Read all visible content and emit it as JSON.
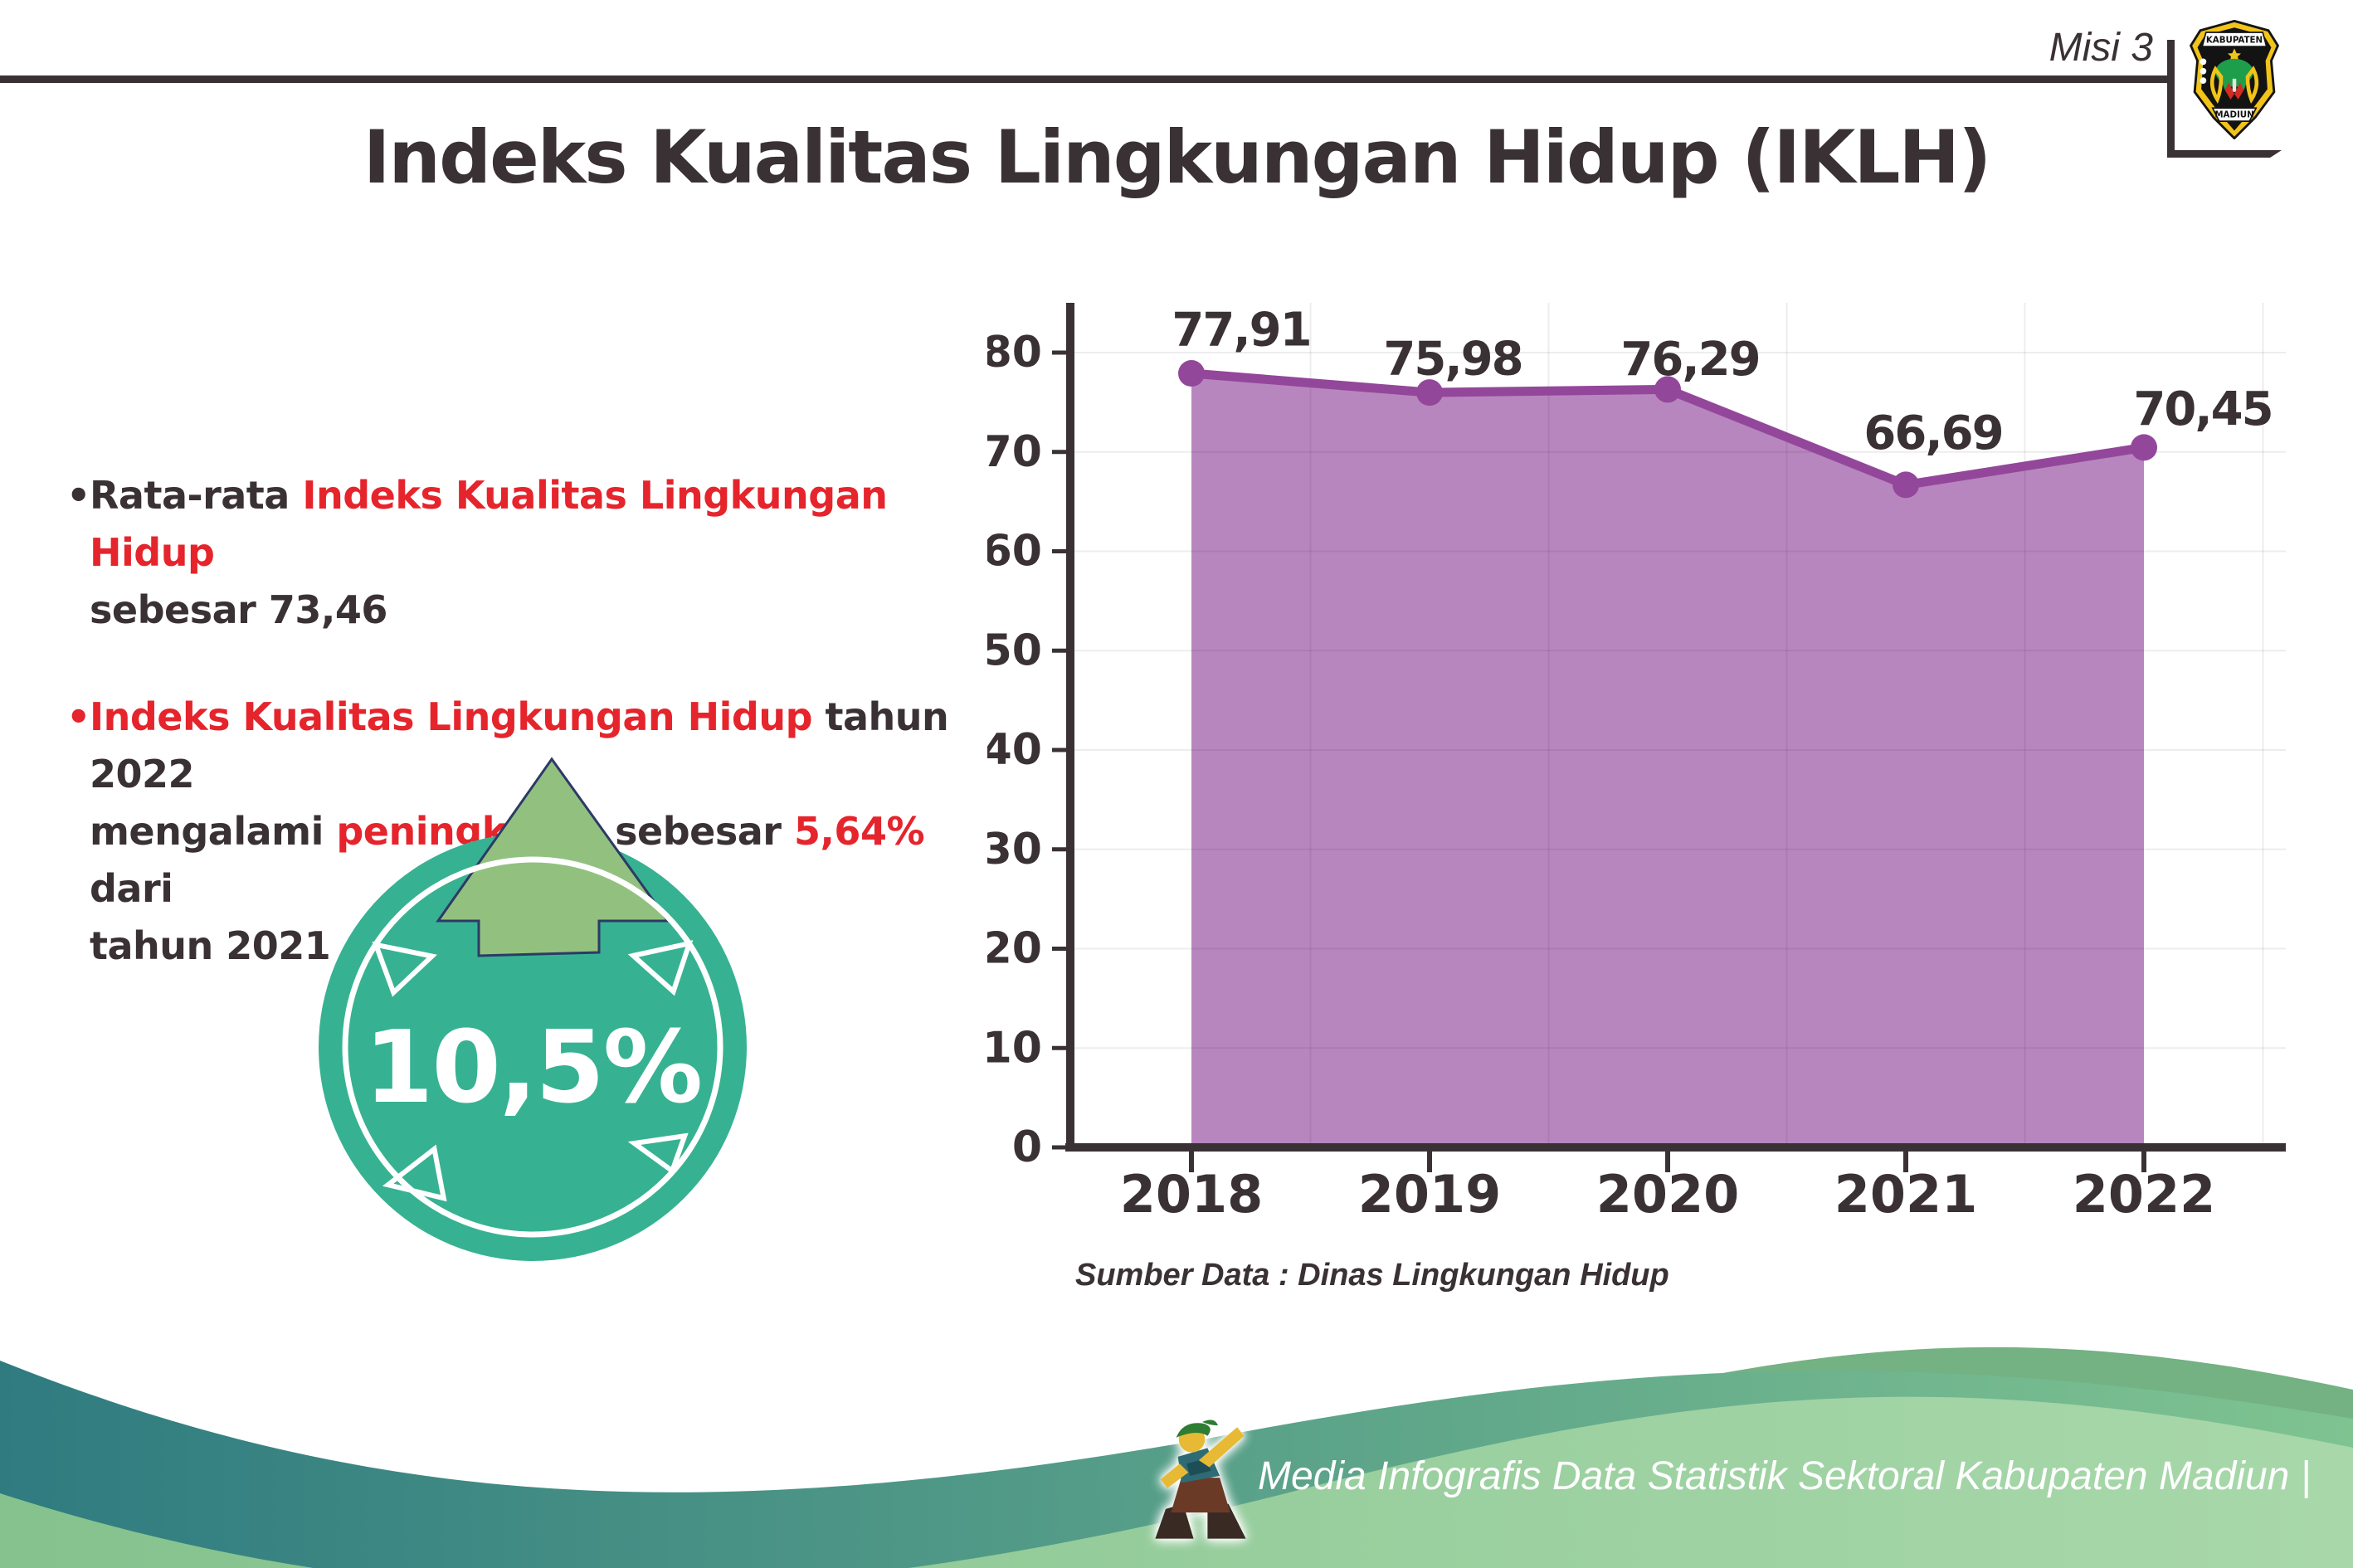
{
  "header": {
    "misi_label": "Misi 3",
    "logo": {
      "top_text": "KABUPATEN",
      "bottom_text": "MADIUN"
    }
  },
  "title": "Indeks Kualitas Lingkungan Hidup (IKLH)",
  "bullets": {
    "b1": {
      "dot": "•",
      "l1_dark": "Rata-rata ",
      "l1_red": "Indeks Kualitas Lingkungan Hidup",
      "l2_dark": "sebesar 73,46"
    },
    "b2": {
      "dot": "•",
      "l1_red": "Indeks Kualitas Lingkungan Hidup",
      "l1_dark": " tahun 2022",
      "l2_dark1": "mengalami ",
      "l2_red1": "peningkatan",
      "l2_dark2": " sebesar ",
      "l2_red2": "5,64%",
      "l2_dark3": " dari",
      "l3_dark": "tahun 2021"
    }
  },
  "badge": {
    "value": "10,5%",
    "circle_color": "#36b292",
    "arrow_color": "#92c17f"
  },
  "chart_data": {
    "type": "area",
    "categories": [
      "2018",
      "2019",
      "2020",
      "2021",
      "2022"
    ],
    "values": [
      77.91,
      75.98,
      76.29,
      66.69,
      70.45
    ],
    "point_labels": [
      "77,91",
      "75,98",
      "76,29",
      "66,69",
      "70,45"
    ],
    "title": "",
    "xlabel": "",
    "ylabel": "",
    "ylim": [
      0,
      85
    ],
    "yticks": [
      0,
      10,
      20,
      30,
      40,
      50,
      60,
      70,
      80
    ],
    "grid": true,
    "legend": "none",
    "fill_color": "#b886be",
    "line_color": "#93479a",
    "axis_color": "#3a3134",
    "label_offsets": {
      "dx": [
        60,
        28,
        27,
        33,
        71
      ],
      "dy": [
        -52,
        -40,
        -36,
        -62,
        -46
      ]
    }
  },
  "source_note": "Sumber Data : Dinas Lingkungan Hidup",
  "footer": {
    "credit": "Media Infografis Data Statistik Sektoral Kabupaten Madiun |",
    "teal_left": "#2f7b80",
    "teal_right": "#7fc391",
    "green_light_left": "#85c28e",
    "green_light_right": "#a8d8aa",
    "green_back": "#74b183"
  },
  "colors": {
    "text_dark": "#3a3134",
    "accent_red": "#e5242c",
    "background": "#ffffff"
  }
}
